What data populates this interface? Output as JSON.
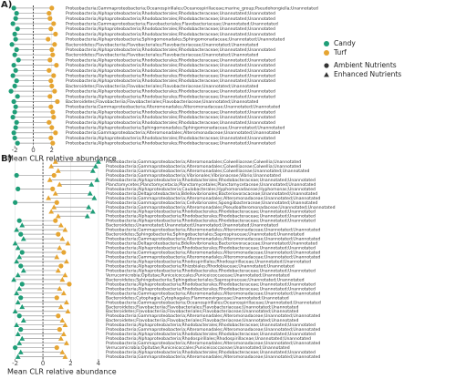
{
  "chart_data": [
    {
      "type": "dot",
      "panel_label": "A)",
      "xlabel": "Mean CLR relative abundance",
      "xlim": [
        -3,
        3.3
      ],
      "xticks": [
        -2,
        0,
        2
      ],
      "reference_line": 0,
      "categories": [
        "Proteobacteria;Gammaproteobacteria;Oceanospirillales;Oceanospirillaceae;marine_group;Pseudohongiella;Unannotated",
        "Proteobacteria;Alphaproteobacteria;Rhodobacterales;Rhodobacteraceae;Unannotated;Unannotated",
        "Proteobacteria;Alphaproteobacteria;Rhodobacterales;Rhodobacteraceae;Unannotated;Unannotated",
        "Proteobacteria;Gammaproteobacteria;Flavobacteriales;Flavobacteriaceae;Unannotated;Unannotated",
        "Proteobacteria;Alphaproteobacteria;Rhodobacterales;Rhodobacteraceae;Unannotated;Unannotated",
        "Proteobacteria;Alphaproteobacteria;Rhodobacterales;Rhodobacteraceae;Unannotated;Unannotated",
        "Proteobacteria;Alphaproteobacteria;Sphingomonadales;Sphingomonadaceae;Unannotated;Unannotated",
        "Bacteroidetes;Flavobacteriia;Flavobacteriales;Flavobacteriaceae;Unannotated;Unannotated",
        "Proteobacteria;Alphaproteobacteria;Rhodobacterales;Rhodobacteraceae;Unannotated;Unannotated",
        "Bacteroidetes;Flavobacteriia;Flavobacteriales;Flavobacteriaceae;Unannotated;Unannotated",
        "Proteobacteria;Alphaproteobacteria;Rhodobacterales;Rhodobacteraceae;Unannotated;Unannotated",
        "Proteobacteria;Alphaproteobacteria;Rhodobacterales;Rhodobacteraceae;Unannotated;Unannotated",
        "Proteobacteria;Alphaproteobacteria;Rhodobacterales;Rhodobacteraceae;Unannotated;Unannotated",
        "Proteobacteria;Alphaproteobacteria;Rhodobacterales;Rhodobacteraceae;Unannotated;Unannotated",
        "Proteobacteria;Alphaproteobacteria;Rhodobacterales;Rhodobacteraceae;Unannotated;Unannotated",
        "Bacteroidetes;Flavobacteriia;Flavobacteriales;Flavobacteriaceae;Unannotated;Unannotated",
        "Proteobacteria;Alphaproteobacteria;Rhodobacterales;Rhodobacteraceae;Unannotated;Unannotated",
        "Proteobacteria;Alphaproteobacteria;Rhodobacterales;Rhodobacteraceae;Unannotated;Unannotated",
        "Bacteroidetes;Flavobacteriia;Flavobacteriales;Flavobacteriaceae;Unannotated;Unannotated",
        "Proteobacteria;Gammaproteobacteria;Alteromonadales;Alteromonadaceae;Unannotated;Unannotated",
        "Proteobacteria;Alphaproteobacteria;Rhodobacterales;Rhodobacteraceae;Unannotated;Unannotated",
        "Proteobacteria;Alphaproteobacteria;Rhodobacterales;Rhodobacteraceae;Unannotated;Unannotated",
        "Proteobacteria;Alphaproteobacteria;Rhodobacterales;Rhodobacteraceae;Unannotated;Unannotated",
        "Proteobacteria;Alphaproteobacteria;Sphingomonadales;Sphingomonadaceae;Unannotated;Unannotated",
        "Proteobacteria;Gammaproteobacteria;Alteromonadales;Alteromonadaceae;Unannotated;Unannotated",
        "Proteobacteria;Alphaproteobacteria;Rhodobacterales;Rhodobacteraceae;Unannotated;Unannotated",
        "Proteobacteria;Alphaproteobacteria;Rhodobacterales;Rhodobacteraceae;Unannotated;Unannotated"
      ],
      "markers": [
        "circle",
        "circle",
        "circle",
        "circle",
        "circle",
        "circle",
        "circle",
        "circle",
        "circle",
        "circle",
        "circle",
        "circle",
        "circle",
        "circle",
        "circle",
        "circle",
        "circle",
        "circle",
        "circle",
        "circle",
        "circle",
        "circle",
        "circle",
        "circle",
        "circle",
        "circle",
        "circle"
      ],
      "series": [
        {
          "name": "Candy",
          "color": "#1f9e78",
          "values": [
            -2.1,
            -1.8,
            -1.9,
            -2.2,
            -1.7,
            -2.0,
            -1.9,
            -2.3,
            -1.8,
            -2.0,
            -1.6,
            -2.1,
            -1.9,
            -2.2,
            -1.8,
            -2.0,
            -2.4,
            -1.7,
            -2.1,
            -1.9,
            -2.0,
            -2.2,
            -1.8,
            -1.9,
            -2.1,
            -2.0,
            -1.7
          ]
        },
        {
          "name": "Turf",
          "color": "#e6a532",
          "values": [
            2.0,
            1.7,
            1.8,
            2.2,
            1.9,
            2.4,
            1.6,
            2.3,
            2.0,
            2.1,
            1.8,
            2.5,
            1.7,
            2.2,
            1.9,
            2.0,
            2.3,
            1.8,
            2.6,
            1.9,
            2.1,
            2.2,
            1.7,
            2.0,
            2.4,
            1.9,
            2.1
          ]
        }
      ]
    },
    {
      "type": "dot",
      "panel_label": "B)",
      "xlabel": "Mean CLR relative abundance",
      "xlim": [
        -2.7,
        4.4
      ],
      "xticks": [
        -2,
        0,
        2,
        4
      ],
      "reference_line": 0,
      "categories": [
        "Proteobacteria;Gammaproteobacteria;Alteromonadales;Colwelliaceae;Colwellia;Unannotated",
        "Proteobacteria;Gammaproteobacteria;Alteromonadales;Colwelliaceae;Colwellia;Unannotated",
        "Proteobacteria;Gammaproteobacteria;Alteromonadales;Colwelliaceae;Unannotated;Unannotated",
        "Proteobacteria;Gammaproteobacteria;Vibrionales;Vibrionaceae;Vibrio;Unannotated",
        "Proteobacteria;Alphaproteobacteria;Rhodobacterales;Rhodobacteraceae;Unannotated;Unannotated",
        "Planctomycetes;Planctomycetacia;Planctomycetales;Planctomycetaceae;Unannotated;Unannotated",
        "Proteobacteria;Alphaproteobacteria;Caulobacterales;Hyphomonadaceae;Hyphomonas;Unannotated",
        "Proteobacteria;Deltaproteobacteria;Bdellovibrionales;Bacteriovoracaceae;Unannotated;Unannotated",
        "Proteobacteria;Gammaproteobacteria;Alteromonadales;Alteromonadaceae;Unannotated;Unannotated",
        "Proteobacteria;Gammaproteobacteria;Cellvibrionales;Spongiibacteraceae;Unannotated;Unannotated",
        "Proteobacteria;Gammaproteobacteria;Alteromonadales;Pseudoalteromonadaceae;Unannotated;Unannotated",
        "Proteobacteria;Alphaproteobacteria;Rhodobacterales;Rhodobacteraceae;Unannotated;Unannotated",
        "Proteobacteria;Alphaproteobacteria;Rhodobacterales;Rhodobacteraceae;Unannotated;Unannotated",
        "Proteobacteria;Alphaproteobacteria;Rhodobacterales;Rhodobacteraceae;Unannotated;Unannotated",
        "Bacteroidetes;Unannotated;Unannotated;Unannotated;Unannotated;Unannotated",
        "Proteobacteria;Gammaproteobacteria;Alteromonadales;Alteromonadaceae;Unannotated;Unannotated",
        "Bacteroidetes;Sphingobacteriia;Sphingobacteriales;Saprospiraceae;Unannotated;Unannotated",
        "Proteobacteria;Gammaproteobacteria;Alteromonadales;Alteromonadaceae;Unannotated;Unannotated",
        "Proteobacteria;Deltaproteobacteria;Bdellovibrionales;Bacteriovoracaceae;Unannotated;Unannotated",
        "Proteobacteria;Alphaproteobacteria;Rhodobacterales;Rhodobacteraceae;Unannotated;Unannotated",
        "Proteobacteria;Gammaproteobacteria;Alteromonadales;Alteromonadaceae;Unannotated;Unannotated",
        "Proteobacteria;Gammaproteobacteria;Alteromonadales;Alteromonadaceae;Unannotated;Unannotated",
        "Proteobacteria;Alphaproteobacteria;Rhodospirillales;Rhodospirillaceae;Unannotated;Unannotated",
        "Proteobacteria;Alphaproteobacteria;Rhizobiales;Rhodobiaceae;Unannotated;Unannotated",
        "Proteobacteria;Alphaproteobacteria;Rhodobacterales;Rhodobacteraceae;Unannotated;Unannotated",
        "Verrucomicrobia;Opitutae;Puniceicoccales;Puniceicoccaceae;Unannotated;Unannotated",
        "Bacteroidetes;Sphingobacteriia;Sphingobacteriales;Saprospiraceae;Unannotated;Unannotated",
        "Proteobacteria;Alphaproteobacteria;Rhodobacterales;Rhodobacteraceae;Unannotated;Unannotated",
        "Proteobacteria;Alphaproteobacteria;Rhodobacterales;Rhodobacteraceae;Unannotated;Unannotated",
        "Proteobacteria;Gammaproteobacteria;Alteromonadales;Alteromonadaceae;Unannotated;Unannotated",
        "Bacteroidetes;Cytophagia;Cytophagales;Flammeovirgaceae;Unannotated;Unannotated",
        "Proteobacteria;Gammaproteobacteria;Oceanospirillales;Oceanospirillaceae;Unannotated;Unannotated",
        "Bacteroidetes;Flavobacteriia;Flavobacteriales;Flavobacteriaceae;Unannotated;Unannotated",
        "Bacteroidetes;Flavobacteriia;Flavobacteriales;Flavobacteriaceae;Unannotated;Unannotated",
        "Proteobacteria;Gammaproteobacteria;Alteromonadales;Alteromonadaceae;Unannotated;Unannotated",
        "Bacteroidetes;Flavobacteriia;Flavobacteriales;Flavobacteriaceae;Unannotated;Unannotated",
        "Proteobacteria;Alphaproteobacteria;Rhodobacterales;Rhodobacteraceae;Unannotated;Unannotated",
        "Proteobacteria;Gammaproteobacteria;Alteromonadales;Alteromonadaceae;Unannotated;Unannotated",
        "Proteobacteria;Alphaproteobacteria;Rhodobacterales;Rhodobacteraceae;Unannotated;Unannotated",
        "Proteobacteria;Alphaproteobacteria;Rhodospirillales;Rhodospirillaceae;Unannotated;Unannotated",
        "Proteobacteria;Gammaproteobacteria;Alteromonadales;Alteromonadaceae;Unannotated;Unannotated",
        "Verrucomicrobia;Opitutae;Puniceicoccales;Puniceicoccaceae;Unannotated;Unannotated",
        "Proteobacteria;Alphaproteobacteria;Rhodobacterales;Rhodobacteraceae;Unannotated;Unannotated",
        "Proteobacteria;Gammaproteobacteria;Alteromonadales;Alteromonadaceae;Unannotated;Unannotated"
      ],
      "markers": [
        "triangle",
        "triangle",
        "triangle",
        "circle",
        "triangle",
        "triangle",
        "circle",
        "triangle",
        "triangle",
        "circle",
        "triangle",
        "triangle",
        "triangle",
        "circle",
        "triangle",
        "triangle",
        "circle",
        "triangle",
        "triangle",
        "triangle",
        "circle",
        "triangle",
        "triangle",
        "circle",
        "triangle",
        "triangle",
        "triangle",
        "circle",
        "triangle",
        "triangle",
        "circle",
        "triangle",
        "triangle",
        "triangle",
        "circle",
        "triangle",
        "triangle",
        "circle",
        "triangle",
        "triangle",
        "triangle",
        "circle",
        "triangle",
        "triangle"
      ],
      "series": [
        {
          "color": "#1f9e78",
          "values": [
            4.0,
            3.8,
            3.6,
            -1.9,
            3.9,
            3.5,
            -1.8,
            3.4,
            3.7,
            -2.0,
            3.3,
            3.6,
            3.2,
            -1.7,
            -1.5,
            -1.9,
            -1.6,
            -1.4,
            -2.0,
            -1.8,
            -1.5,
            -1.7,
            -1.9,
            -1.6,
            -1.4,
            -1.8,
            -2.1,
            -1.5,
            -1.7,
            -1.9,
            -1.6,
            -1.8,
            -1.5,
            -2.0,
            -1.7,
            -1.4,
            -1.9,
            -1.6,
            -1.8,
            -1.5,
            -1.7,
            -2.0,
            -1.6,
            -1.8
          ]
        },
        {
          "color": "#e6a532",
          "values": [
            0.9,
            0.6,
            1.1,
            0.8,
            0.5,
            1.2,
            0.7,
            0.9,
            0.4,
            1.0,
            0.8,
            0.6,
            1.1,
            0.9,
            1.3,
            1.6,
            1.1,
            1.4,
            1.8,
            1.2,
            1.5,
            1.0,
            1.7,
            1.3,
            1.1,
            1.6,
            1.4,
            1.9,
            1.2,
            1.5,
            1.0,
            1.7,
            1.3,
            1.8,
            1.1,
            1.4,
            1.6,
            1.2,
            1.5,
            1.3,
            1.7,
            1.0,
            1.4,
            1.6
          ]
        }
      ]
    }
  ],
  "shape_legend": [
    {
      "name": "Ambient Nutrients",
      "marker": "circle"
    },
    {
      "name": "Enhanced Nutrients",
      "marker": "triangle"
    }
  ]
}
